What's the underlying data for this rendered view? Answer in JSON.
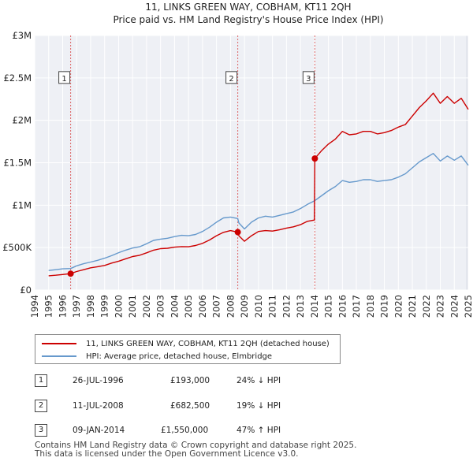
{
  "chart_data": {
    "type": "line",
    "title": "11, LINKS GREEN WAY, COBHAM, KT11 2QH",
    "subtitle": "Price paid vs. HM Land Registry's House Price Index (HPI)",
    "xlabel": "",
    "ylabel": "",
    "xlim": [
      1994,
      2025
    ],
    "ylim": [
      0,
      3000000
    ],
    "y_ticks": [
      {
        "value": 0,
        "label": "£0"
      },
      {
        "value": 500000,
        "label": "£500K"
      },
      {
        "value": 1000000,
        "label": "£1M"
      },
      {
        "value": 1500000,
        "label": "£1.5M"
      },
      {
        "value": 2000000,
        "label": "£2M"
      },
      {
        "value": 2500000,
        "label": "£2.5M"
      },
      {
        "value": 3000000,
        "label": "£3M"
      }
    ],
    "x_ticks": [
      "1994",
      "1995",
      "1996",
      "1997",
      "1998",
      "1999",
      "2000",
      "2001",
      "2002",
      "2003",
      "2004",
      "2005",
      "2006",
      "2007",
      "2008",
      "2009",
      "2010",
      "2011",
      "2012",
      "2013",
      "2014",
      "2015",
      "2016",
      "2017",
      "2018",
      "2019",
      "2020",
      "2021",
      "2022",
      "2023",
      "2024",
      "2025"
    ],
    "grid": true,
    "series": [
      {
        "name": "11, LINKS GREEN WAY, COBHAM, KT11 2QH (detached house)",
        "color": "#cc0000",
        "x": [
          1995.0,
          1995.5,
          1996.0,
          1996.57,
          1997.0,
          1997.5,
          1998.0,
          1998.5,
          1999.0,
          1999.5,
          2000.0,
          2000.5,
          2001.0,
          2001.5,
          2002.0,
          2002.5,
          2003.0,
          2003.5,
          2004.0,
          2004.5,
          2005.0,
          2005.5,
          2006.0,
          2006.5,
          2007.0,
          2007.5,
          2008.0,
          2008.52,
          2008.6,
          2009.0,
          2009.5,
          2010.0,
          2010.5,
          2011.0,
          2011.5,
          2012.0,
          2012.5,
          2013.0,
          2013.5,
          2014.0,
          2014.03,
          2014.5,
          2015.0,
          2015.5,
          2016.0,
          2016.5,
          2017.0,
          2017.5,
          2018.0,
          2018.5,
          2019.0,
          2019.5,
          2020.0,
          2020.5,
          2021.0,
          2021.5,
          2022.0,
          2022.5,
          2023.0,
          2023.5,
          2024.0,
          2024.5,
          2025.0
        ],
        "values": [
          168000,
          175000,
          183000,
          193000,
          218000,
          240000,
          262000,
          275000,
          290000,
          318000,
          340000,
          368000,
          395000,
          410000,
          438000,
          470000,
          488000,
          492000,
          505000,
          512000,
          510000,
          525000,
          550000,
          590000,
          640000,
          680000,
          700000,
          682500,
          640000,
          575000,
          640000,
          690000,
          700000,
          695000,
          710000,
          730000,
          745000,
          770000,
          810000,
          825000,
          1550000,
          1640000,
          1720000,
          1780000,
          1870000,
          1830000,
          1840000,
          1870000,
          1870000,
          1840000,
          1855000,
          1880000,
          1920000,
          1950000,
          2050000,
          2150000,
          2230000,
          2320000,
          2200000,
          2280000,
          2200000,
          2260000,
          2130000
        ]
      },
      {
        "name": "HPI: Average price, detached house, Elmbridge",
        "color": "#6699cc",
        "x": [
          1995.0,
          1995.5,
          1996.0,
          1996.57,
          1997.0,
          1997.5,
          1998.0,
          1998.5,
          1999.0,
          1999.5,
          2000.0,
          2000.5,
          2001.0,
          2001.5,
          2002.0,
          2002.5,
          2003.0,
          2003.5,
          2004.0,
          2004.5,
          2005.0,
          2005.5,
          2006.0,
          2006.5,
          2007.0,
          2007.5,
          2008.0,
          2008.52,
          2008.6,
          2009.0,
          2009.5,
          2010.0,
          2010.5,
          2011.0,
          2011.5,
          2012.0,
          2012.5,
          2013.0,
          2013.5,
          2014.0,
          2014.03,
          2014.5,
          2015.0,
          2015.5,
          2016.0,
          2016.5,
          2017.0,
          2017.5,
          2018.0,
          2018.5,
          2019.0,
          2019.5,
          2020.0,
          2020.5,
          2021.0,
          2021.5,
          2022.0,
          2022.5,
          2023.0,
          2023.5,
          2024.0,
          2024.5,
          2025.0
        ],
        "values": [
          230000,
          240000,
          250000,
          254000,
          285000,
          310000,
          330000,
          350000,
          375000,
          405000,
          440000,
          470000,
          495000,
          510000,
          545000,
          585000,
          600000,
          610000,
          630000,
          645000,
          640000,
          655000,
          690000,
          740000,
          800000,
          850000,
          860000,
          842000,
          790000,
          720000,
          800000,
          850000,
          870000,
          860000,
          880000,
          900000,
          920000,
          960000,
          1010000,
          1050000,
          1054000,
          1110000,
          1170000,
          1220000,
          1290000,
          1270000,
          1280000,
          1300000,
          1300000,
          1280000,
          1290000,
          1300000,
          1330000,
          1370000,
          1440000,
          1510000,
          1560000,
          1610000,
          1520000,
          1580000,
          1530000,
          1580000,
          1470000
        ]
      }
    ],
    "sales": [
      {
        "num": "1",
        "x": 1996.57,
        "value": 193000,
        "date": "26-JUL-1996",
        "price": "£193,000",
        "hpi": "24% ↓ HPI"
      },
      {
        "num": "2",
        "x": 2008.52,
        "value": 682500,
        "date": "11-JUL-2008",
        "price": "£682,500",
        "hpi": "19% ↓ HPI"
      },
      {
        "num": "3",
        "x": 2014.03,
        "value": 1550000,
        "date": "09-JAN-2014",
        "price": "£1,550,000",
        "hpi": "47% ↑ HPI"
      }
    ],
    "legend_position": "bottom"
  },
  "footer": {
    "line1": "Contains HM Land Registry data © Crown copyright and database right 2025.",
    "line2": "This data is licensed under the Open Government Licence v3.0."
  }
}
